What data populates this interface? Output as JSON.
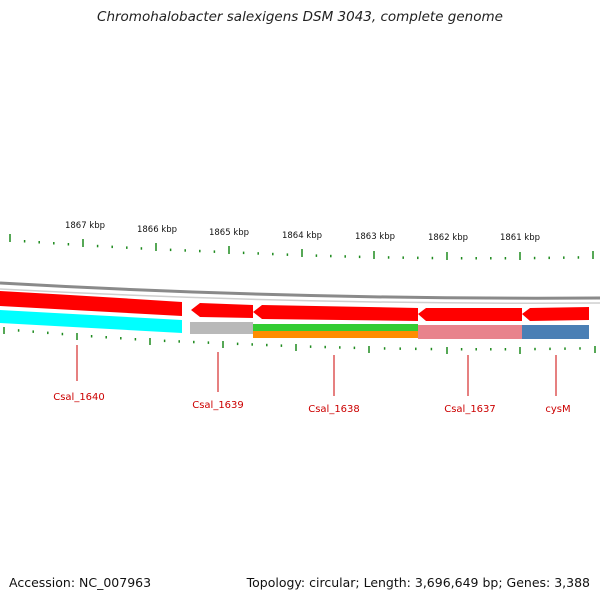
{
  "title": "Chromohalobacter salexigens DSM 3043, complete genome",
  "footer": {
    "accession": "Accession: NC_007963",
    "topology": "Topology: circular; Length: 3,696,649 bp; Genes: 3,388"
  },
  "ruler": {
    "labels": [
      "1867 kbp",
      "1866 kbp",
      "1865 kbp",
      "1864 kbp",
      "1863 kbp",
      "1862 kbp",
      "1861 kbp"
    ]
  },
  "genes": [
    {
      "name": "Csal_1640",
      "strand": "forward",
      "color": "#ff0000",
      "feature_color": "#00ffff"
    },
    {
      "name": "Csal_1639",
      "strand": "reverse",
      "color": "#ff0000",
      "feature_color": "#b9b9b9"
    },
    {
      "name": "Csal_1638",
      "strand": "reverse",
      "color": "#ff0000",
      "feature_color": "#33cc33",
      "feature_color_2": "#ff8c00"
    },
    {
      "name": "Csal_1637",
      "strand": "reverse",
      "color": "#ff0000",
      "feature_color": "#e8838c"
    },
    {
      "name": "cysM",
      "strand": "reverse",
      "color": "#ff0000",
      "feature_color": "#4a7fb5"
    }
  ],
  "colors": {
    "backbone": "#8a8a8a",
    "tick": "#1e8a1e",
    "label": "#cc0000"
  }
}
